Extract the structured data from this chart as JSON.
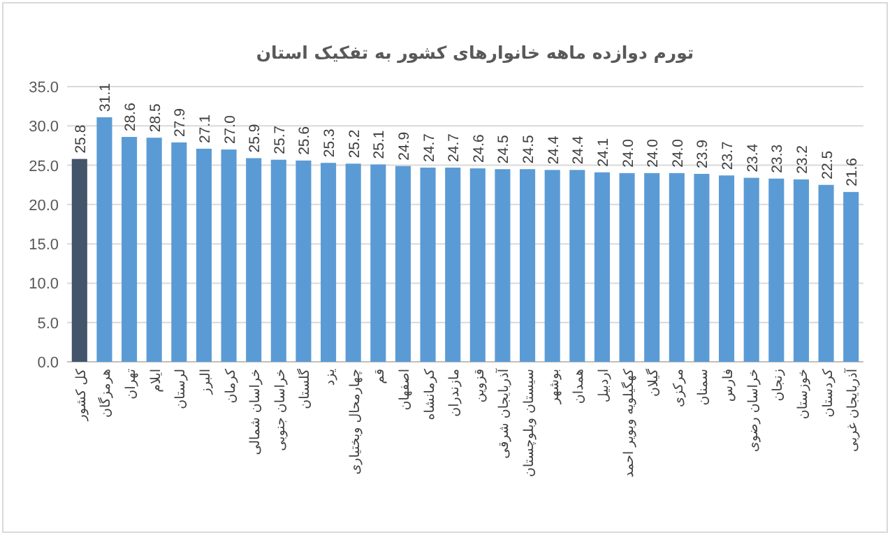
{
  "chart_data": {
    "type": "bar",
    "title": "تورم دوازده ماهه خانوارهای کشور به تفکیک استان",
    "categories": [
      "کل کشور",
      "هرمزگان",
      "تهران",
      "ایلام",
      "لرستان",
      "البرز",
      "کرمان",
      "خراسان شمالی",
      "خراسان جنوبی",
      "گلستان",
      "یزد",
      "چهارمحال وبختیاری",
      "قم",
      "اصفهان",
      "کرمانشاه",
      "مازندران",
      "قزوین",
      "آذربایجان شرقی",
      "سیستان وبلوچستان",
      "بوشهر",
      "همدان",
      "اردبیل",
      "کهگیلویه وبویر احمد",
      "گیلان",
      "مرکزی",
      "سمنان",
      "فارس",
      "خراسان رضوی",
      "زنجان",
      "خوزستان",
      "کردستان",
      "آذربایجان غربی"
    ],
    "values": [
      25.8,
      31.1,
      28.6,
      28.5,
      27.9,
      27.1,
      27.0,
      25.9,
      25.7,
      25.6,
      25.3,
      25.2,
      25.1,
      24.9,
      24.7,
      24.7,
      24.6,
      24.5,
      24.5,
      24.4,
      24.4,
      24.1,
      24.0,
      24.0,
      24.0,
      23.9,
      23.7,
      23.4,
      23.3,
      23.2,
      22.5,
      21.6
    ],
    "value_labels": [
      "25.8",
      "31.1",
      "28.6",
      "28.5",
      "27.9",
      "27.1",
      "27.0",
      "25.9",
      "25.7",
      "25.6",
      "25.3",
      "25.2",
      "25.1",
      "24.9",
      "24.7",
      "24.7",
      "24.6",
      "24.5",
      "24.5",
      "24.4",
      "24.4",
      "24.1",
      "24.0",
      "24.0",
      "24.0",
      "23.9",
      "23.7",
      "23.4",
      "23.3",
      "23.2",
      "22.5",
      "21.6"
    ],
    "colors": [
      "#44546a",
      "#5b9bd5",
      "#5b9bd5",
      "#5b9bd5",
      "#5b9bd5",
      "#5b9bd5",
      "#5b9bd5",
      "#5b9bd5",
      "#5b9bd5",
      "#5b9bd5",
      "#5b9bd5",
      "#5b9bd5",
      "#5b9bd5",
      "#5b9bd5",
      "#5b9bd5",
      "#5b9bd5",
      "#5b9bd5",
      "#5b9bd5",
      "#5b9bd5",
      "#5b9bd5",
      "#5b9bd5",
      "#5b9bd5",
      "#5b9bd5",
      "#5b9bd5",
      "#5b9bd5",
      "#5b9bd5",
      "#5b9bd5",
      "#5b9bd5",
      "#5b9bd5",
      "#5b9bd5",
      "#5b9bd5",
      "#5b9bd5"
    ],
    "ylim": [
      0,
      35
    ],
    "yticks": [
      {
        "value": 0,
        "label": "0.0"
      },
      {
        "value": 5,
        "label": "5.0"
      },
      {
        "value": 10,
        "label": "10.0"
      },
      {
        "value": 15,
        "label": "15.0"
      },
      {
        "value": 20,
        "label": "20.0"
      },
      {
        "value": 25,
        "label": "25.0"
      },
      {
        "value": 30,
        "label": "30.0"
      },
      {
        "value": 35,
        "label": "35.0"
      }
    ],
    "grid": "y"
  }
}
